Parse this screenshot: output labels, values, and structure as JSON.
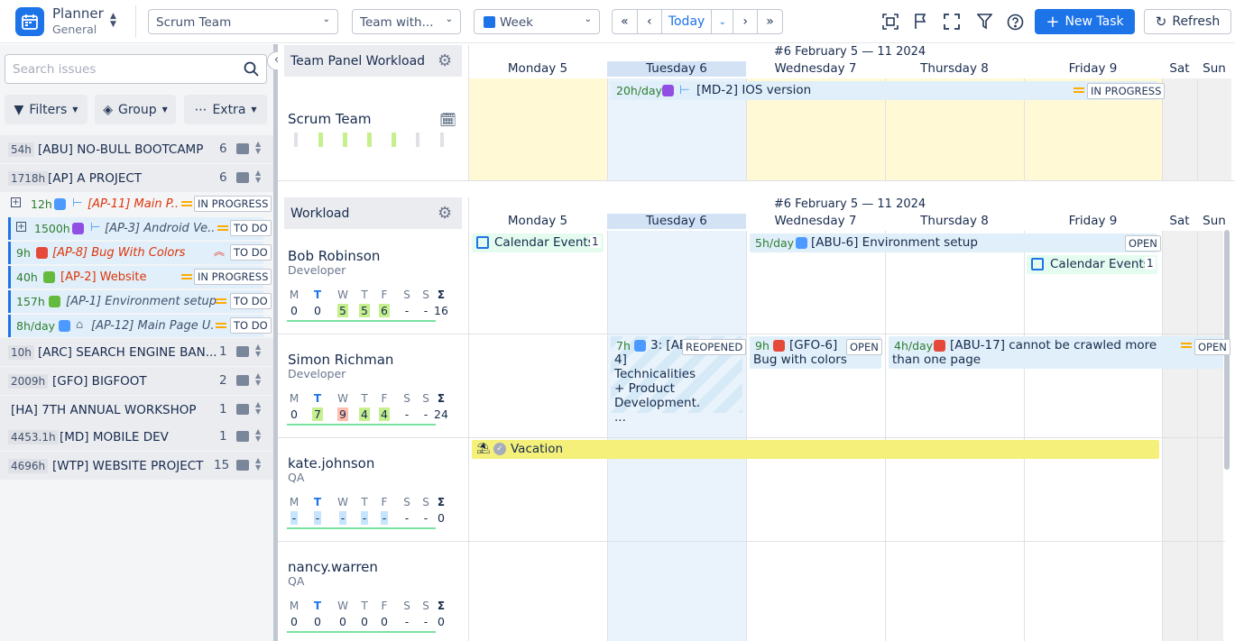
{
  "app": {
    "title": "Planner",
    "subtitle": "General"
  },
  "toolbar": {
    "team_select": "Scrum Team",
    "view_select": "Team with...",
    "period_select": "Week",
    "today_label": "Today",
    "new_task_label": "New Task",
    "refresh_label": "Refresh"
  },
  "sidebar": {
    "search_placeholder": "Search issues",
    "filters_label": "Filters",
    "group_label": "Group",
    "extra_label": "Extra",
    "projects": [
      {
        "hours": "54h",
        "name": "[ABU] NO-BULL BOOTCAMP",
        "count": "6"
      },
      {
        "hours": "1718h",
        "name": "[AP] A PROJECT",
        "count": "6"
      },
      {
        "hours": "10h",
        "name": "[ARC] SEARCH ENGINE BAN...",
        "count": "1"
      },
      {
        "hours": "2009h",
        "name": "[GFO] BIGFOOT",
        "count": "2"
      },
      {
        "hours": "",
        "name": "[HA] 7TH ANNUAL WORKSHOP",
        "count": "1"
      },
      {
        "hours": "4453.1h",
        "name": "[MD] MOBILE DEV",
        "count": "1"
      },
      {
        "hours": "4696h",
        "name": "[WTP] WEBSITE PROJECT",
        "count": "15"
      }
    ],
    "tasks": [
      {
        "hours": "12h",
        "name": "[AP-11] Main P...",
        "status": "IN PROGRESS"
      },
      {
        "hours": "1500h",
        "name": "[AP-3] Android Ve...",
        "status": "TO DO"
      },
      {
        "hours": "9h",
        "name": "[AP-8] Bug With Colors",
        "status": "TO DO"
      },
      {
        "hours": "40h",
        "name": "[AP-2] Website",
        "status": "IN PROGRESS"
      },
      {
        "hours": "157h",
        "name": "[AP-1] Environment setup",
        "status": "TO DO"
      },
      {
        "hours": "8h/day",
        "name": "[AP-12] Main Page U...",
        "status": "TO DO"
      }
    ]
  },
  "team_panel": {
    "title": "Team Panel Workload",
    "team_name": "Scrum Team",
    "week_title": "#6 February 5 — 11 2024",
    "days": [
      "Monday 5",
      "Tuesday 6",
      "Wednesday 7",
      "Thursday 8",
      "Friday 9",
      "Sat",
      "Sun"
    ],
    "task": {
      "rate": "20h/day",
      "name": "[MD-2] IOS version",
      "status": "IN PROGRESS"
    }
  },
  "workload": {
    "title": "Workload",
    "week_title": "#6 February 5 — 11 2024",
    "days": [
      "Monday 5",
      "Tuesday 6",
      "Wednesday 7",
      "Thursday 8",
      "Friday 9",
      "Sat",
      "Sun"
    ],
    "day_letters": [
      "M",
      "T",
      "W",
      "T",
      "F",
      "S",
      "S",
      "Σ"
    ],
    "people": [
      {
        "name": "Bob Robinson",
        "role": "Developer",
        "values": [
          "0",
          "0",
          "5",
          "5",
          "6",
          "-",
          "-",
          "16"
        ]
      },
      {
        "name": "Simon Richman",
        "role": "Developer",
        "values": [
          "0",
          "7",
          "9",
          "4",
          "4",
          "-",
          "-",
          "24"
        ]
      },
      {
        "name": "kate.johnson",
        "role": "QA",
        "values": [
          "-",
          "-",
          "-",
          "-",
          "-",
          "-",
          "-",
          "0"
        ]
      },
      {
        "name": "nancy.warren",
        "role": "QA",
        "values": [
          "0",
          "0",
          "0",
          "0",
          "0",
          "-",
          "-",
          "0"
        ]
      }
    ],
    "events": {
      "cal1_label": "Calendar Events",
      "cal1_count": "1",
      "env_rate": "5h/day",
      "env_name": "[ABU-6] Environment setup",
      "env_status": "OPEN",
      "cal2_label": "Calendar Events",
      "cal2_count": "1",
      "tech_hours": "7h",
      "tech_name": "3: [ABU-4] Technicalities + Product Development. ...",
      "tech_status": "REOPENED",
      "gfo_hours": "9h",
      "gfo_name": "[GFO-6] Bug with colors",
      "gfo_status": "OPEN",
      "abu17_rate": "4h/day",
      "abu17_name": "[ABU-17] cannot be crawled more than one page",
      "abu17_status": "OPEN",
      "vacation_label": "Vacation"
    }
  }
}
